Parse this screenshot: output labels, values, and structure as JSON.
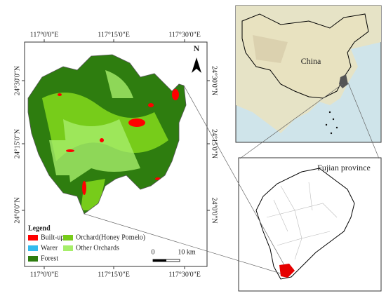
{
  "main_map": {
    "top_labels": [
      "117°0'0\"E",
      "117°15'0\"E",
      "117°30'0\"E"
    ],
    "bottom_labels": [
      "117°0'0\"E",
      "117°15'0\"E",
      "117°30'0\"E"
    ],
    "left_labels": [
      "24°30'0\"N",
      "24°15'0\"N",
      "24°0'0\"N"
    ],
    "right_labels": [
      "24°30'0\"N",
      "24°15'0\"N",
      "24°0'0\"N"
    ],
    "north": "N",
    "scale": {
      "start": "0",
      "end": "10 km"
    }
  },
  "legend": {
    "title": "Legend",
    "items": [
      {
        "label": "Built-up",
        "color": "#ff0000"
      },
      {
        "label": "Warer",
        "color": "#33bbee"
      },
      {
        "label": "Forest",
        "color": "#2e7d0f"
      },
      {
        "label": "Orchard(Honey Pomelo)",
        "color": "#77cc1a"
      },
      {
        "label": "Other Orchards",
        "color": "#a6ee6a"
      }
    ]
  },
  "inset_china": {
    "label": "China"
  },
  "inset_fujian": {
    "label": "Fujian province"
  }
}
